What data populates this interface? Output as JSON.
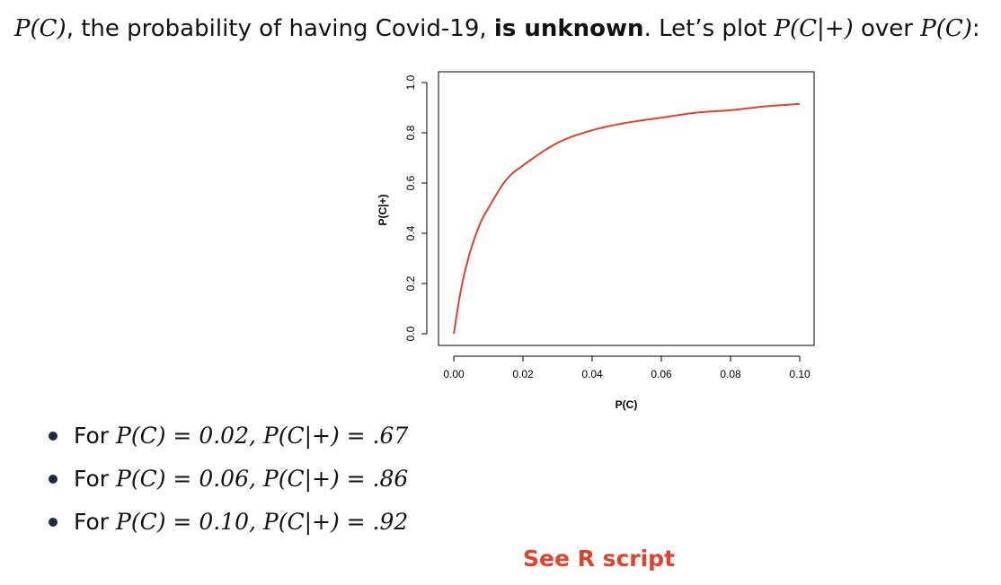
{
  "intro": {
    "prob_symbol": "P(C)",
    "text_before_bold": ", the probability of having Covid-19, ",
    "bold_text": "is unknown",
    "text_after_bold": ". Let’s plot ",
    "posterior_symbol": "P(C|+)",
    "text_over": " over ",
    "prior_symbol": "P(C)",
    "colon": ":"
  },
  "chart_data": {
    "type": "line",
    "title": "",
    "xlabel": "P(C)",
    "ylabel": "P(C|+)",
    "xlim": [
      0,
      0.1
    ],
    "ylim": [
      0,
      1
    ],
    "xticks": [
      "0.00",
      "0.02",
      "0.04",
      "0.06",
      "0.08",
      "0.10"
    ],
    "yticks": [
      "0.0",
      "0.2",
      "0.4",
      "0.6",
      "0.8",
      "1.0"
    ],
    "grid": false,
    "line_color": "#e2412b",
    "series": [
      {
        "x": [
          0,
          0.002,
          0.004,
          0.006,
          0.008,
          0.01,
          0.015,
          0.02,
          0.03,
          0.04,
          0.05,
          0.06,
          0.07,
          0.08,
          0.09,
          0.1
        ],
        "y": [
          0.0,
          0.17,
          0.29,
          0.38,
          0.45,
          0.5,
          0.61,
          0.67,
          0.76,
          0.81,
          0.84,
          0.86,
          0.88,
          0.89,
          0.905,
          0.915
        ]
      }
    ]
  },
  "bullets": [
    {
      "prefix": "For ",
      "expr": "P(C) = 0.02, P(C|+) = .67"
    },
    {
      "prefix": "For ",
      "expr": "P(C) = 0.06, P(C|+) = .86"
    },
    {
      "prefix": "For ",
      "expr": "P(C) = 0.10, P(C|+) = .92"
    }
  ],
  "link_text": "See R script",
  "link_color": "#e2412b"
}
